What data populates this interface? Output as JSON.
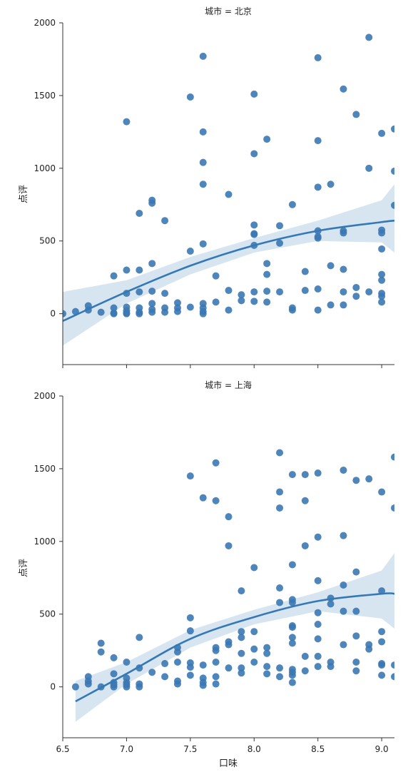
{
  "chart_data": {
    "type": "scatter",
    "facet_var": "城市",
    "xlabel": "口味",
    "ylabel": "点评",
    "xlim": [
      6.5,
      9.1
    ],
    "ylim": [
      -350,
      2000
    ],
    "xticks": [
      6.5,
      7.0,
      7.5,
      8.0,
      8.5,
      9.0
    ],
    "xtick_labels": [
      "6.5",
      "7.0",
      "7.5",
      "8.0",
      "8.5",
      "9.0"
    ],
    "yticks": [
      0,
      500,
      1000,
      1500,
      2000
    ],
    "ytick_labels": [
      "0",
      "500",
      "1000",
      "1500",
      "2000"
    ],
    "colors": {
      "points": "#3b78b4",
      "fit": "#3478b5",
      "band": "#b6cfe6"
    },
    "panels": [
      {
        "title": "城市 = 北京",
        "points": [
          [
            6.5,
            0
          ],
          [
            6.6,
            15
          ],
          [
            6.7,
            25
          ],
          [
            6.7,
            55
          ],
          [
            6.8,
            10
          ],
          [
            6.9,
            260
          ],
          [
            6.9,
            40
          ],
          [
            6.9,
            5
          ],
          [
            6.9,
            0
          ],
          [
            7.0,
            1320
          ],
          [
            7.0,
            300
          ],
          [
            7.0,
            140
          ],
          [
            7.0,
            45
          ],
          [
            7.0,
            20
          ],
          [
            7.0,
            5
          ],
          [
            7.0,
            0
          ],
          [
            7.1,
            690
          ],
          [
            7.1,
            300
          ],
          [
            7.1,
            150
          ],
          [
            7.1,
            40
          ],
          [
            7.1,
            10
          ],
          [
            7.1,
            0
          ],
          [
            7.2,
            780
          ],
          [
            7.2,
            760
          ],
          [
            7.2,
            345
          ],
          [
            7.2,
            155
          ],
          [
            7.2,
            70
          ],
          [
            7.2,
            30
          ],
          [
            7.2,
            10
          ],
          [
            7.3,
            640
          ],
          [
            7.3,
            140
          ],
          [
            7.3,
            40
          ],
          [
            7.3,
            10
          ],
          [
            7.4,
            75
          ],
          [
            7.4,
            40
          ],
          [
            7.4,
            15
          ],
          [
            7.5,
            1490
          ],
          [
            7.5,
            430
          ],
          [
            7.5,
            45
          ],
          [
            7.6,
            1770
          ],
          [
            7.6,
            1250
          ],
          [
            7.6,
            1040
          ],
          [
            7.6,
            890
          ],
          [
            7.6,
            480
          ],
          [
            7.6,
            70
          ],
          [
            7.6,
            40
          ],
          [
            7.6,
            15
          ],
          [
            7.6,
            0
          ],
          [
            7.7,
            260
          ],
          [
            7.7,
            80
          ],
          [
            7.8,
            820
          ],
          [
            7.8,
            160
          ],
          [
            7.8,
            25
          ],
          [
            7.9,
            130
          ],
          [
            7.9,
            90
          ],
          [
            8.0,
            1510
          ],
          [
            8.0,
            1100
          ],
          [
            8.0,
            610
          ],
          [
            8.0,
            550
          ],
          [
            8.0,
            545
          ],
          [
            8.0,
            470
          ],
          [
            8.0,
            150
          ],
          [
            8.0,
            85
          ],
          [
            8.1,
            1200
          ],
          [
            8.1,
            345
          ],
          [
            8.1,
            270
          ],
          [
            8.1,
            155
          ],
          [
            8.1,
            80
          ],
          [
            8.2,
            605
          ],
          [
            8.2,
            485
          ],
          [
            8.2,
            150
          ],
          [
            8.3,
            750
          ],
          [
            8.3,
            40
          ],
          [
            8.3,
            25
          ],
          [
            8.4,
            290
          ],
          [
            8.4,
            160
          ],
          [
            8.5,
            1760
          ],
          [
            8.5,
            1190
          ],
          [
            8.5,
            870
          ],
          [
            8.5,
            570
          ],
          [
            8.5,
            530
          ],
          [
            8.5,
            520
          ],
          [
            8.5,
            170
          ],
          [
            8.5,
            25
          ],
          [
            8.6,
            890
          ],
          [
            8.6,
            330
          ],
          [
            8.6,
            60
          ],
          [
            8.7,
            1545
          ],
          [
            8.7,
            570
          ],
          [
            8.7,
            555
          ],
          [
            8.7,
            305
          ],
          [
            8.7,
            150
          ],
          [
            8.7,
            60
          ],
          [
            8.8,
            1370
          ],
          [
            8.8,
            180
          ],
          [
            8.8,
            120
          ],
          [
            8.9,
            1900
          ],
          [
            8.9,
            1000
          ],
          [
            8.9,
            150
          ],
          [
            9.0,
            1240
          ],
          [
            9.0,
            575
          ],
          [
            9.0,
            555
          ],
          [
            9.0,
            445
          ],
          [
            9.0,
            270
          ],
          [
            9.0,
            230
          ],
          [
            9.0,
            140
          ],
          [
            9.0,
            120
          ],
          [
            9.0,
            80
          ],
          [
            9.1,
            1270
          ],
          [
            9.1,
            980
          ],
          [
            9.1,
            745
          ]
        ],
        "fit": [
          [
            6.5,
            -50
          ],
          [
            7.0,
            150
          ],
          [
            7.5,
            330
          ],
          [
            8.0,
            470
          ],
          [
            8.5,
            570
          ],
          [
            9.0,
            630
          ],
          [
            9.1,
            640
          ]
        ],
        "band_upper": [
          [
            6.5,
            150
          ],
          [
            7.0,
            230
          ],
          [
            7.5,
            390
          ],
          [
            8.0,
            520
          ],
          [
            8.5,
            640
          ],
          [
            9.0,
            780
          ],
          [
            9.1,
            890
          ]
        ],
        "band_lower": [
          [
            6.5,
            -220
          ],
          [
            7.0,
            70
          ],
          [
            7.5,
            270
          ],
          [
            8.0,
            420
          ],
          [
            8.5,
            500
          ],
          [
            9.0,
            490
          ],
          [
            9.1,
            420
          ]
        ]
      },
      {
        "title": "城市 = 上海",
        "points": [
          [
            6.6,
            0
          ],
          [
            6.7,
            70
          ],
          [
            6.7,
            40
          ],
          [
            6.7,
            20
          ],
          [
            6.8,
            300
          ],
          [
            6.8,
            240
          ],
          [
            6.8,
            0
          ],
          [
            6.9,
            200
          ],
          [
            6.9,
            90
          ],
          [
            6.9,
            30
          ],
          [
            6.9,
            15
          ],
          [
            6.9,
            0
          ],
          [
            7.0,
            170
          ],
          [
            7.0,
            60
          ],
          [
            7.0,
            30
          ],
          [
            7.0,
            15
          ],
          [
            7.0,
            0
          ],
          [
            7.1,
            340
          ],
          [
            7.1,
            130
          ],
          [
            7.1,
            20
          ],
          [
            7.1,
            0
          ],
          [
            7.2,
            100
          ],
          [
            7.3,
            160
          ],
          [
            7.3,
            70
          ],
          [
            7.4,
            270
          ],
          [
            7.4,
            240
          ],
          [
            7.4,
            170
          ],
          [
            7.4,
            40
          ],
          [
            7.4,
            20
          ],
          [
            7.5,
            1450
          ],
          [
            7.5,
            475
          ],
          [
            7.5,
            385
          ],
          [
            7.5,
            165
          ],
          [
            7.5,
            135
          ],
          [
            7.5,
            80
          ],
          [
            7.6,
            1300
          ],
          [
            7.6,
            150
          ],
          [
            7.6,
            60
          ],
          [
            7.6,
            30
          ],
          [
            7.6,
            10
          ],
          [
            7.7,
            1540
          ],
          [
            7.7,
            1280
          ],
          [
            7.7,
            270
          ],
          [
            7.7,
            250
          ],
          [
            7.7,
            170
          ],
          [
            7.7,
            70
          ],
          [
            7.7,
            20
          ],
          [
            7.8,
            1170
          ],
          [
            7.8,
            970
          ],
          [
            7.8,
            310
          ],
          [
            7.8,
            290
          ],
          [
            7.8,
            130
          ],
          [
            7.9,
            660
          ],
          [
            7.9,
            380
          ],
          [
            7.9,
            340
          ],
          [
            7.9,
            230
          ],
          [
            7.9,
            130
          ],
          [
            7.9,
            95
          ],
          [
            8.0,
            820
          ],
          [
            8.0,
            380
          ],
          [
            8.0,
            260
          ],
          [
            8.0,
            170
          ],
          [
            8.1,
            270
          ],
          [
            8.1,
            230
          ],
          [
            8.1,
            140
          ],
          [
            8.1,
            90
          ],
          [
            8.2,
            1610
          ],
          [
            8.2,
            1340
          ],
          [
            8.2,
            1230
          ],
          [
            8.2,
            680
          ],
          [
            8.2,
            580
          ],
          [
            8.2,
            130
          ],
          [
            8.2,
            70
          ],
          [
            8.3,
            1460
          ],
          [
            8.3,
            840
          ],
          [
            8.3,
            600
          ],
          [
            8.3,
            580
          ],
          [
            8.3,
            420
          ],
          [
            8.3,
            410
          ],
          [
            8.3,
            340
          ],
          [
            8.3,
            300
          ],
          [
            8.3,
            120
          ],
          [
            8.3,
            100
          ],
          [
            8.3,
            80
          ],
          [
            8.3,
            30
          ],
          [
            8.4,
            1460
          ],
          [
            8.4,
            1280
          ],
          [
            8.4,
            970
          ],
          [
            8.4,
            210
          ],
          [
            8.4,
            110
          ],
          [
            8.5,
            1470
          ],
          [
            8.5,
            1030
          ],
          [
            8.5,
            730
          ],
          [
            8.5,
            510
          ],
          [
            8.5,
            430
          ],
          [
            8.5,
            330
          ],
          [
            8.5,
            210
          ],
          [
            8.5,
            140
          ],
          [
            8.6,
            610
          ],
          [
            8.6,
            570
          ],
          [
            8.6,
            170
          ],
          [
            8.6,
            140
          ],
          [
            8.7,
            1490
          ],
          [
            8.7,
            1040
          ],
          [
            8.7,
            700
          ],
          [
            8.7,
            520
          ],
          [
            8.7,
            290
          ],
          [
            8.8,
            1420
          ],
          [
            8.8,
            790
          ],
          [
            8.8,
            520
          ],
          [
            8.8,
            350
          ],
          [
            8.8,
            170
          ],
          [
            8.8,
            110
          ],
          [
            8.9,
            1430
          ],
          [
            8.9,
            290
          ],
          [
            8.9,
            260
          ],
          [
            9.0,
            1340
          ],
          [
            9.0,
            660
          ],
          [
            9.0,
            380
          ],
          [
            9.0,
            310
          ],
          [
            9.0,
            160
          ],
          [
            9.0,
            150
          ],
          [
            9.0,
            80
          ],
          [
            9.1,
            1580
          ],
          [
            9.1,
            1230
          ],
          [
            9.1,
            150
          ],
          [
            9.1,
            70
          ]
        ],
        "fit": [
          [
            6.6,
            -100
          ],
          [
            7.0,
            90
          ],
          [
            7.5,
            330
          ],
          [
            8.0,
            480
          ],
          [
            8.5,
            590
          ],
          [
            9.0,
            640
          ],
          [
            9.1,
            640
          ]
        ],
        "band_upper": [
          [
            6.6,
            40
          ],
          [
            7.0,
            170
          ],
          [
            7.5,
            390
          ],
          [
            8.0,
            530
          ],
          [
            8.5,
            650
          ],
          [
            9.0,
            800
          ],
          [
            9.1,
            920
          ]
        ],
        "band_lower": [
          [
            6.6,
            -240
          ],
          [
            7.0,
            20
          ],
          [
            7.5,
            270
          ],
          [
            8.0,
            430
          ],
          [
            8.5,
            520
          ],
          [
            9.0,
            470
          ],
          [
            9.1,
            400
          ]
        ]
      }
    ]
  }
}
